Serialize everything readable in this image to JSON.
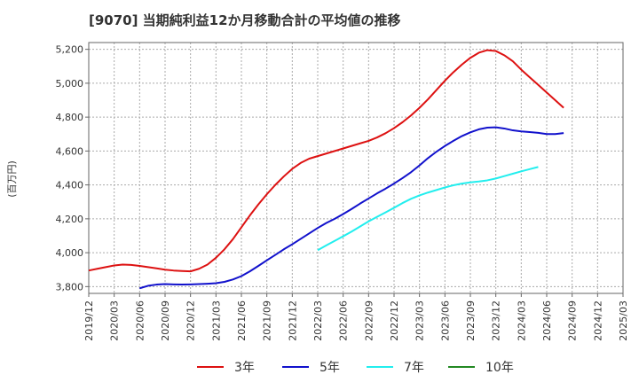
{
  "chart_data": {
    "type": "line",
    "title": "[9070]  当期純利益12か月移動合計の平均値の推移",
    "ylabel": "(百万円)",
    "xlabel": "",
    "ylim": [
      3760,
      5240
    ],
    "y_ticks": [
      3800,
      4000,
      4200,
      4400,
      4600,
      4800,
      5000,
      5200
    ],
    "y_tick_labels": [
      "3,800",
      "4,000",
      "4,200",
      "4,400",
      "4,600",
      "4,800",
      "5,000",
      "5,200"
    ],
    "x_ticks": [
      "2019/12",
      "2020/03",
      "2020/06",
      "2020/09",
      "2020/12",
      "2021/03",
      "2021/06",
      "2021/09",
      "2021/12",
      "2022/03",
      "2022/06",
      "2022/09",
      "2022/12",
      "2023/03",
      "2023/06",
      "2023/09",
      "2023/12",
      "2024/03",
      "2024/06",
      "2024/09",
      "2024/12",
      "2025/03"
    ],
    "grid": true,
    "legend_position": "bottom",
    "series": [
      {
        "name": "3年",
        "color": "#dd1111",
        "start": "2019/12",
        "values": [
          3895,
          3905,
          3915,
          3925,
          3930,
          3928,
          3922,
          3915,
          3908,
          3900,
          3895,
          3892,
          3890,
          3905,
          3930,
          3970,
          4020,
          4080,
          4150,
          4220,
          4285,
          4345,
          4400,
          4450,
          4495,
          4530,
          4555,
          4570,
          4585,
          4600,
          4615,
          4630,
          4645,
          4660,
          4680,
          4705,
          4735,
          4770,
          4810,
          4855,
          4905,
          4960,
          5015,
          5065,
          5110,
          5150,
          5180,
          5195,
          5190,
          5165,
          5130,
          5080,
          5035,
          4990,
          4945,
          4900,
          4855
        ]
      },
      {
        "name": "5年",
        "color": "#1111cc",
        "start": "2020/06",
        "values": [
          3790,
          3805,
          3812,
          3815,
          3813,
          3812,
          3813,
          3815,
          3817,
          3820,
          3828,
          3842,
          3862,
          3890,
          3922,
          3955,
          3987,
          4020,
          4050,
          4082,
          4114,
          4146,
          4175,
          4200,
          4228,
          4258,
          4290,
          4320,
          4350,
          4378,
          4408,
          4440,
          4475,
          4515,
          4558,
          4596,
          4630,
          4660,
          4688,
          4710,
          4728,
          4738,
          4740,
          4733,
          4722,
          4716,
          4712,
          4707,
          4700,
          4700,
          4706
        ]
      },
      {
        "name": "7年",
        "color": "#22eeee",
        "start": "2022/03",
        "values": [
          4015,
          4043,
          4070,
          4097,
          4125,
          4155,
          4185,
          4212,
          4238,
          4265,
          4293,
          4318,
          4338,
          4355,
          4370,
          4385,
          4398,
          4408,
          4415,
          4420,
          4427,
          4438,
          4452,
          4466,
          4480,
          4493,
          4506
        ]
      },
      {
        "name": "10年",
        "color": "#228822",
        "start": "2019/12",
        "values": []
      }
    ]
  }
}
